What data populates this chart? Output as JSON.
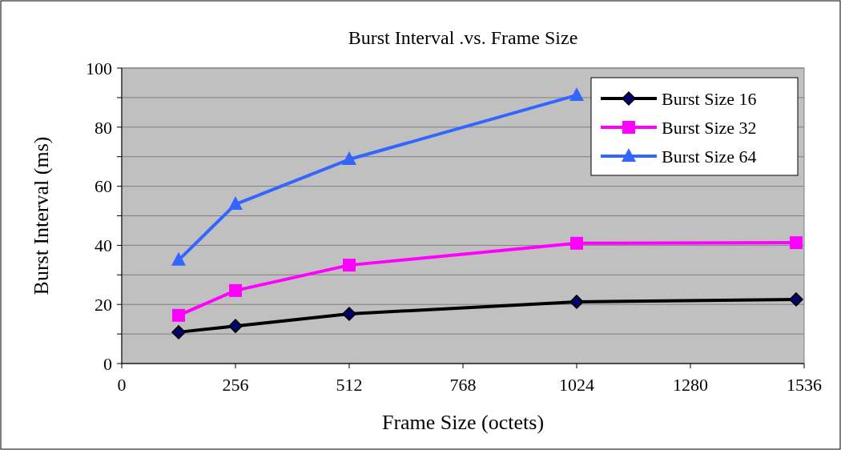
{
  "chart_data": {
    "type": "line",
    "title": "Burst Interval .vs. Frame Size",
    "xlabel": "Frame Size (octets)",
    "ylabel": "Burst Interval (ms)",
    "x": [
      128,
      256,
      512,
      1024,
      1518
    ],
    "series": [
      {
        "name": "Burst Size 16",
        "color": "#000000",
        "marker": "diamond",
        "values": [
          10.6,
          12.7,
          16.8,
          20.9,
          21.7
        ]
      },
      {
        "name": "Burst Size 32",
        "color": "#ff00ff",
        "marker": "square",
        "values": [
          16.3,
          24.7,
          33.3,
          40.7,
          40.9
        ]
      },
      {
        "name": "Burst Size 64",
        "color": "#3366ff",
        "marker": "triangle",
        "values": [
          35,
          53.9,
          69.1,
          90.8,
          null
        ]
      }
    ],
    "xlim": [
      0,
      1536
    ],
    "xticks": [
      0,
      256,
      512,
      768,
      1024,
      1280,
      1536
    ],
    "ylim": [
      0,
      100
    ],
    "yticks": [
      0,
      {
        "value": 10,
        "label": null
      },
      20,
      {
        "value": 30,
        "label": null
      },
      40,
      {
        "value": 50,
        "label": null
      },
      60,
      {
        "value": 70,
        "label": null
      },
      80,
      {
        "value": 90,
        "label": null
      },
      100
    ],
    "grid": "y",
    "legend": "top right",
    "line_style": "solid"
  }
}
